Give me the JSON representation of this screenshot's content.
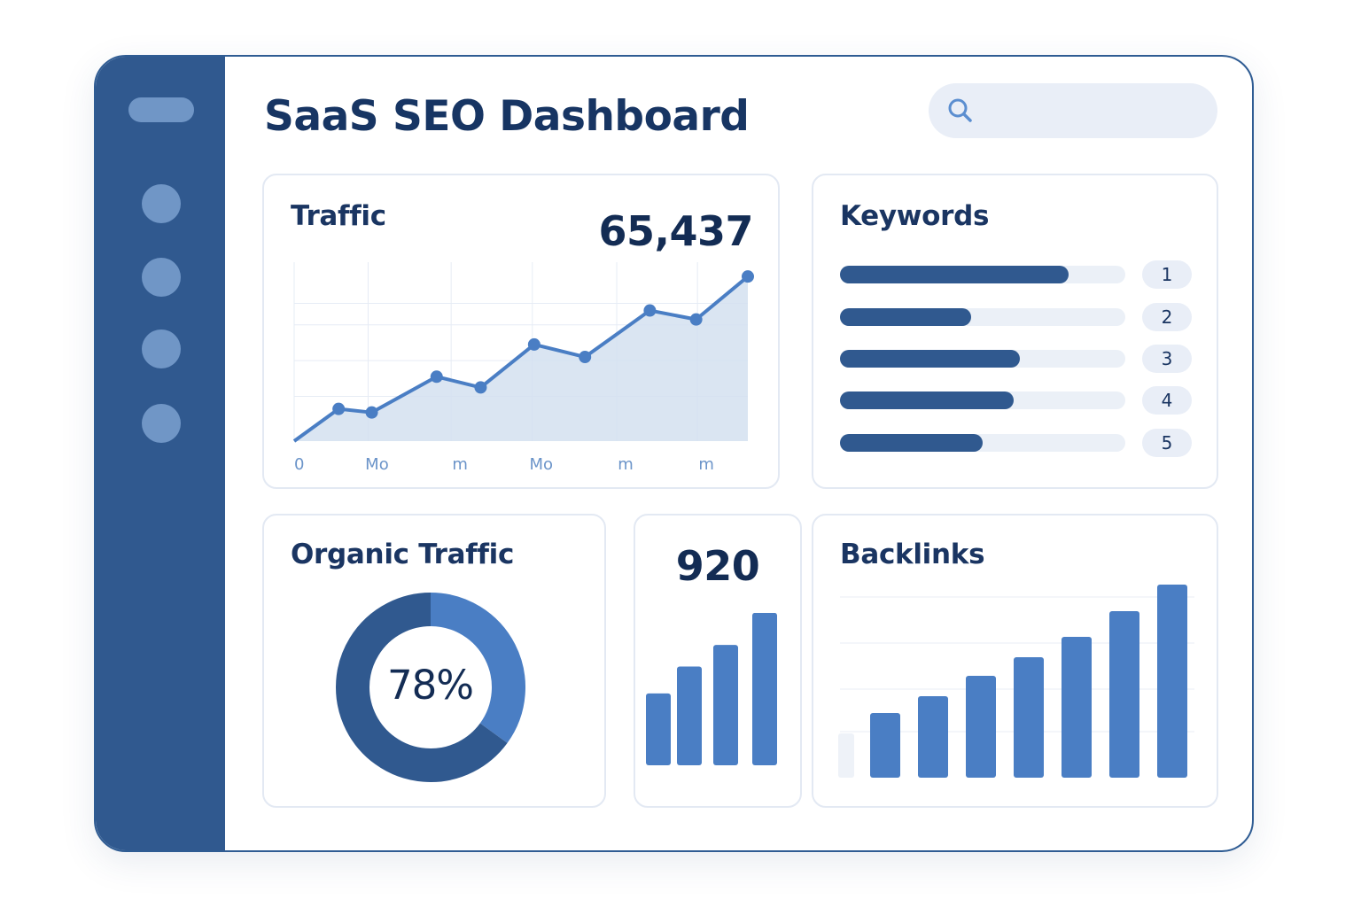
{
  "header": {
    "title": "SaaS SEO Dashboard",
    "search": {
      "value": "",
      "placeholder": ""
    }
  },
  "sidebar": {
    "items": [
      {
        "icon": "menu-pill"
      },
      {
        "icon": "nav-dot"
      },
      {
        "icon": "nav-dot"
      },
      {
        "icon": "nav-dot"
      },
      {
        "icon": "nav-dot"
      }
    ]
  },
  "traffic": {
    "title": "Traffic",
    "value": "65,437",
    "chart_data": {
      "type": "area",
      "x_tick_labels": [
        "0",
        "Mo",
        "m",
        "Mo",
        "m",
        "m"
      ],
      "values": [
        0,
        18,
        16,
        36,
        30,
        54,
        47,
        73,
        68,
        92
      ],
      "ylim": [
        0,
        100
      ],
      "grid": true
    }
  },
  "keywords": {
    "title": "Keywords",
    "items": [
      {
        "rank": "1",
        "value": 0.8
      },
      {
        "rank": "2",
        "value": 0.46
      },
      {
        "rank": "3",
        "value": 0.63
      },
      {
        "rank": "4",
        "value": 0.61
      },
      {
        "rank": "5",
        "value": 0.5
      }
    ]
  },
  "organic": {
    "title": "Organic Traffic",
    "percent_label": "78%",
    "chart_data": {
      "type": "pie",
      "slices": [
        {
          "value": 35,
          "color": "#4a7ec4"
        },
        {
          "value": 65,
          "color": "#30598f"
        }
      ]
    }
  },
  "metric": {
    "value": "920",
    "chart_data": {
      "type": "bar",
      "values": [
        83,
        114,
        139,
        176
      ],
      "ylim": [
        0,
        180
      ]
    }
  },
  "backlinks": {
    "title": "Backlinks",
    "chart_data": {
      "type": "bar",
      "values": [
        50,
        73,
        92,
        115,
        136,
        159,
        188,
        218
      ],
      "ylim": [
        0,
        250
      ],
      "grid": true,
      "first_bar_faded": true
    }
  },
  "colors": {
    "sidebar": "#30598f",
    "accent": "#4a7ec4",
    "dark_accent": "#30598f",
    "area_fill": "#d3e0f0"
  }
}
